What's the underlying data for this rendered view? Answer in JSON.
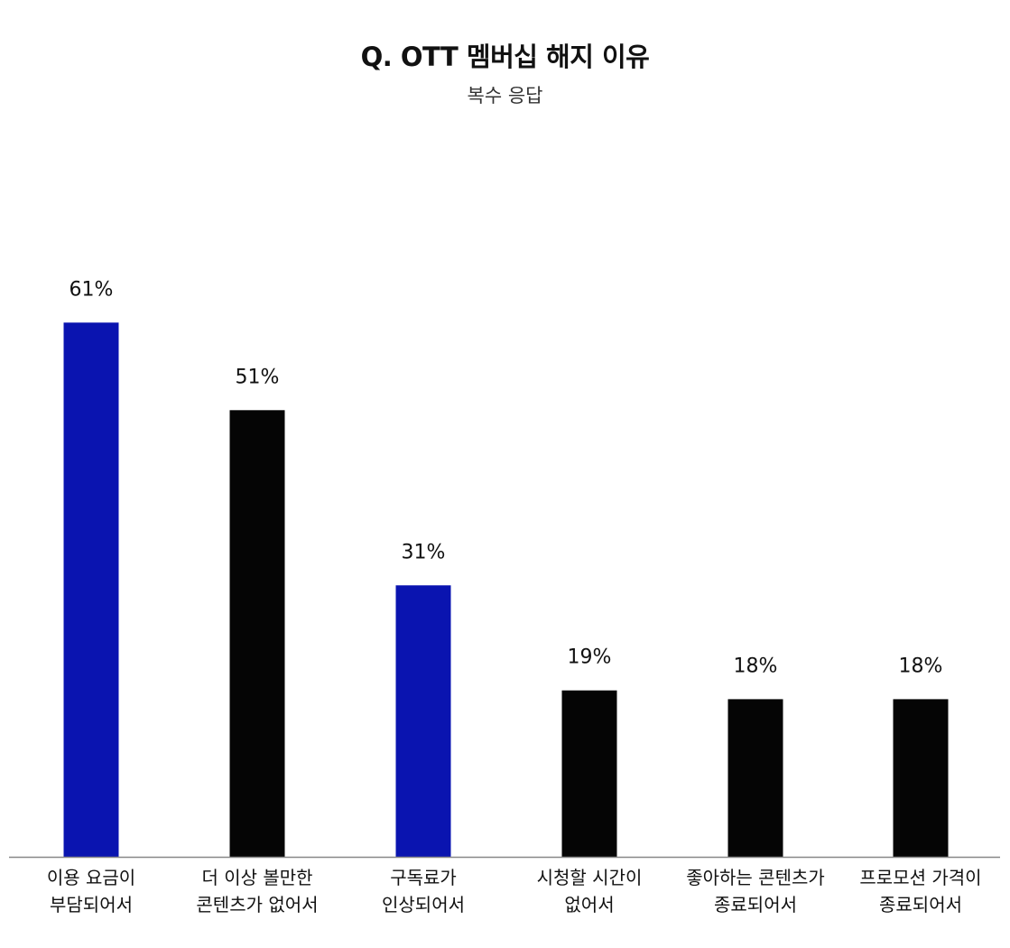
{
  "chart_data": {
    "type": "bar",
    "title": "Q. OTT 멤버십 해지 이유",
    "subtitle": "복수 응답",
    "categories": [
      [
        "이용 요금이",
        "부담되어서"
      ],
      [
        "더 이상 볼만한",
        "콘텐츠가 없어서"
      ],
      [
        "구독료가",
        "인상되어서"
      ],
      [
        "시청할 시간이",
        "없어서"
      ],
      [
        "좋아하는 콘텐츠가",
        "종료되어서"
      ],
      [
        "프로모션 가격이",
        "종료되어서"
      ]
    ],
    "values": [
      61,
      51,
      31,
      19,
      18,
      18
    ],
    "value_labels": [
      "61%",
      "51%",
      "31%",
      "19%",
      "18%",
      "18%"
    ],
    "bar_colors": [
      "#0a14b0",
      "#050505",
      "#0a14b0",
      "#050505",
      "#050505",
      "#050505"
    ],
    "axis_color": "#888888",
    "ylim": [
      0,
      100
    ]
  }
}
